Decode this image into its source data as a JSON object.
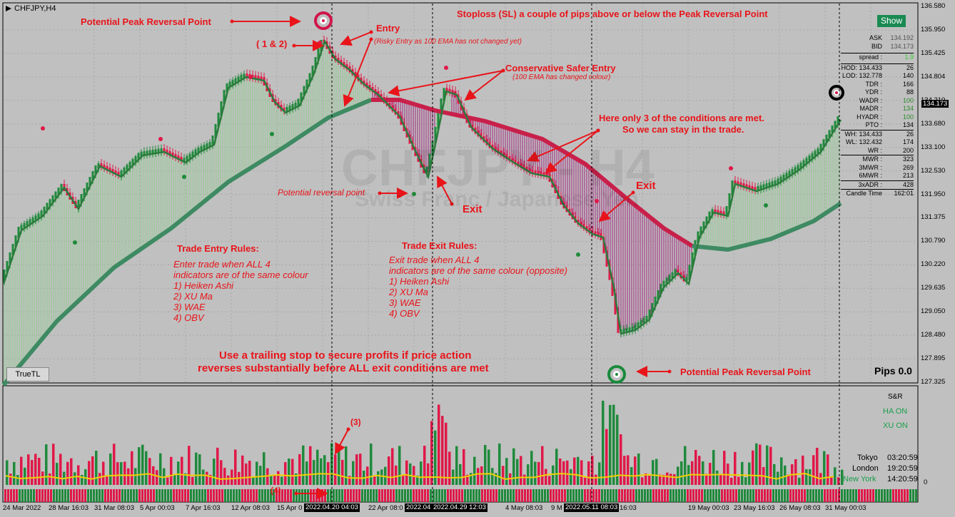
{
  "window": {
    "symbol": "CHFJPY,H4"
  },
  "watermark": {
    "title": "CHFJPY - H4",
    "subtitle": "Swiss Franc / Japanese Yen"
  },
  "annotations": {
    "peak_top": "Potential Peak Reversal Point",
    "peak_bottom": "Potential Peak Reversal Point",
    "one_two": "( 1 & 2)",
    "entry": "Entry",
    "entry_note": "(Risky Entry as 100 EMA has not changed yet)",
    "conservative": "Conservative Safer Entry",
    "conservative_note": "(100 EMA has changed colour)",
    "stoploss": "Stoploss (SL) a couple of pips above or below the Peak Reversal Point",
    "three_conditions_1": "Here only 3 of the conditions are met.",
    "three_conditions_2": "So we can stay in the trade.",
    "potential_reversal": "Potential reversal point",
    "exit1": "Exit",
    "exit2": "Exit",
    "entry_rules": {
      "title": "Trade Entry Rules:",
      "lines": [
        "Enter trade when ALL 4",
        "indicators are of the same colour",
        "1) Heiken Ashi",
        "2) XU Ma",
        "3) WAE",
        "4) OBV"
      ]
    },
    "exit_rules": {
      "title": "Trade Exit Rules:",
      "lines": [
        "Exit trade when ALL 4",
        "indicators are of the same colour (opposite)",
        "1) Heiken Ashi",
        "2) XU Ma",
        "3) WAE",
        "4) OBV"
      ]
    },
    "trailing_1": "Use a trailing stop to secure profits if price action",
    "trailing_2": "reverses substantially before ALL exit conditions are met",
    "label3": "(3)",
    "label4": "(4)"
  },
  "price_scale": [
    "136.580",
    "135.950",
    "135.425",
    "134.804",
    "134.210",
    "133.680",
    "133.100",
    "132.530",
    "131.950",
    "131.375",
    "130.790",
    "130.220",
    "129.635",
    "129.050",
    "128.480",
    "127.895",
    "127.325"
  ],
  "current_price": "134.173",
  "sub_scale": {
    "zero": "0"
  },
  "time_scale": [
    "24 Mar 2022",
    "28 Mar 16:03",
    "31 Mar 08:03",
    "5 Apr 00:03",
    "7 Apr 16:03",
    "12 Apr 08:03",
    "15 Apr 0",
    "22 Apr 08:0",
    "4 May 08:03",
    "9 M",
    "16:03",
    "19 May 00:03",
    "23 May 16:03",
    "26 May 08:03",
    "31 May 00:03"
  ],
  "time_boxes": [
    "2022.04.20 04:03",
    "2022.04",
    "2022.04.29 12:03",
    "2022.05.11 08:03"
  ],
  "panel": {
    "show_button": "Show",
    "ask_label": "ASK",
    "ask": "134.192",
    "bid_label": "BID",
    "bid": "134.173",
    "spread_label": "spread :",
    "spread": "1.9",
    "rows": [
      {
        "k": "HOD: 134.433",
        "v": "26"
      },
      {
        "k": "LOD: 132.778",
        "v": "140"
      },
      {
        "k": "TDR :",
        "v": "166"
      },
      {
        "k": "YDR :",
        "v": "88"
      },
      {
        "k": "WADR :",
        "v": "100"
      },
      {
        "k": "MADR :",
        "v": "134"
      },
      {
        "k": "HYADR :",
        "v": "100"
      },
      {
        "k": "PTO :",
        "v": "134"
      },
      {
        "k": "WH: 134.433",
        "v": "26"
      },
      {
        "k": "WL: 132.432",
        "v": "174"
      },
      {
        "k": "WR :",
        "v": "200"
      },
      {
        "k": "MWR :",
        "v": "323"
      },
      {
        "k": "3MWR :",
        "v": "269"
      },
      {
        "k": "6MWR :",
        "v": "213"
      },
      {
        "k": "3xADR :",
        "v": "428"
      },
      {
        "k": "Candle Time",
        "v": "162:01"
      }
    ]
  },
  "sub_panel": {
    "sr": "S&R",
    "ha": "HA ON",
    "xu": "XU ON",
    "sessions": [
      {
        "name": "Tokyo",
        "time": "03:20:59"
      },
      {
        "name": "London",
        "time": "19:20:59"
      },
      {
        "name": "New York",
        "time": "14:20:59"
      }
    ]
  },
  "truetl": "TrueTL",
  "pips": "Pips 0.0",
  "colors": {
    "up": "#1f8a3c",
    "down": "#e01848",
    "ema": "#3e8a62",
    "ema_down": "#c8204a",
    "text_red": "#e8141a",
    "fill_up": "#8fcf8f",
    "fill_down": "#a0207a"
  }
}
